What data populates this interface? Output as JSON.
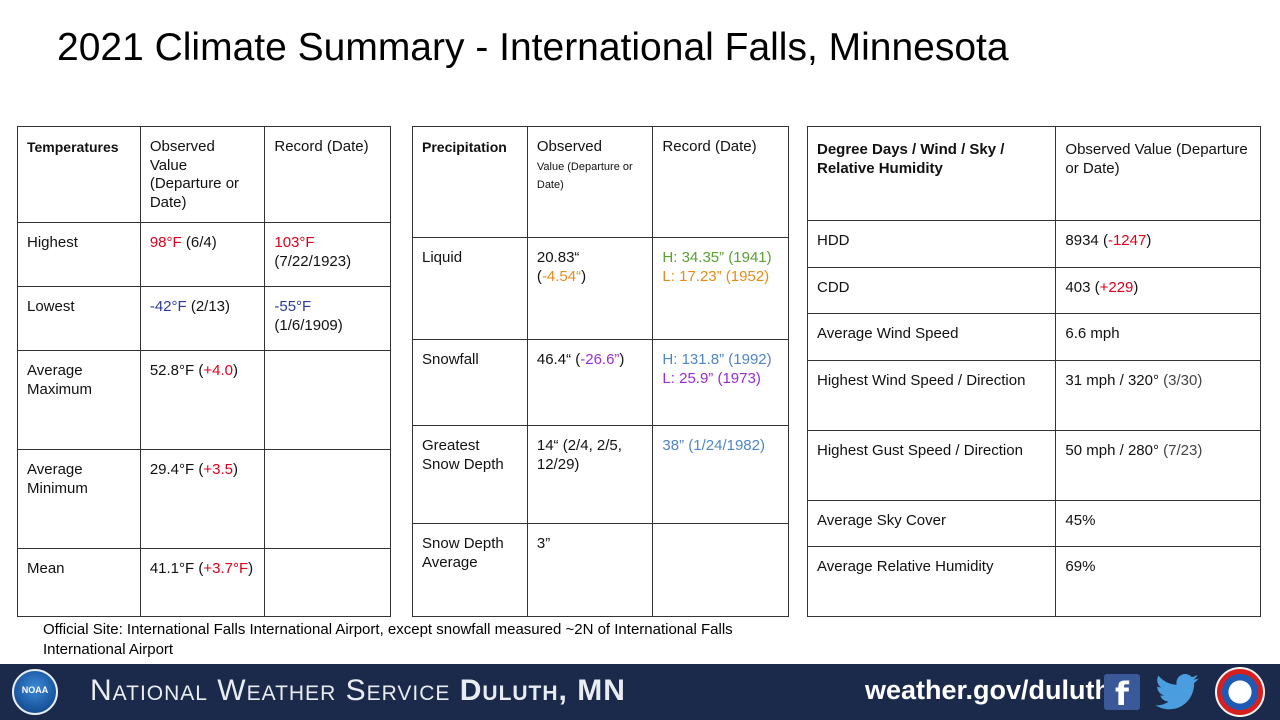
{
  "title": "2021 Climate Summary - International Falls, Minnesota",
  "temperatures": {
    "headers": [
      "Temperatures",
      "Observed Value (Departure or Date)",
      "Record (Date)"
    ],
    "rows": [
      {
        "label": "Highest",
        "obs_val": "98°F",
        "obs_rest": " (6/4)",
        "rec_val": "103°F",
        "rec_rest": "(7/22/1923)"
      },
      {
        "label": "Lowest",
        "obs_val": "-42°F",
        "obs_rest": " (2/13)",
        "rec_val": "-55°F",
        "rec_rest": "(1/6/1909)"
      },
      {
        "label": "Average Maximum",
        "obs_pre": "52.8°F (",
        "obs_dep": "+4.0",
        "obs_post": ")"
      },
      {
        "label": "Average Minimum",
        "obs_pre": "29.4°F (",
        "obs_dep": "+3.5",
        "obs_post": ")"
      },
      {
        "label": "Mean",
        "obs_pre": "41.1°F (",
        "obs_dep": "+3.7°F",
        "obs_post": ")"
      }
    ]
  },
  "precipitation": {
    "headers": [
      "Precipitation",
      "Observed",
      "Value (Departure or Date)",
      "Record (Date)"
    ],
    "rows": [
      {
        "label": "Liquid",
        "obs_pre": "20.83“",
        "obs_open": "(",
        "obs_dep": "-4.54“",
        "obs_post": ")",
        "rec_h": "H: 34.35” (1941)",
        "rec_l": "L: 17.23” (1952)"
      },
      {
        "label": "Snowfall",
        "obs_pre": "46.4“ (",
        "obs_dep": "-26.6”",
        "obs_post": ")",
        "rec_h": "H: 131.8” (1992)",
        "rec_l": "L: 25.9” (1973)"
      },
      {
        "label": "Greatest Snow Depth",
        "obs": "14“ (2/4, 2/5, 12/29)",
        "rec": "38” (1/24/1982)"
      },
      {
        "label": "Snow Depth Average",
        "obs": "3”"
      }
    ]
  },
  "degree_days": {
    "headers": [
      "Degree Days / Wind / Sky / Relative Humidity",
      "Observed Value (Departure or Date)"
    ],
    "rows": [
      {
        "label": "HDD",
        "pre": "8934 (",
        "dep": "-1247",
        "post": ")"
      },
      {
        "label": "CDD",
        "pre": "403 (",
        "dep": "+229",
        "post": ")"
      },
      {
        "label": "Average Wind Speed",
        "value": "6.6 mph"
      },
      {
        "label": "Highest Wind Speed / Direction",
        "value": "31 mph / 320°",
        "date": " (3/30)"
      },
      {
        "label": "Highest Gust Speed / Direction",
        "value": "50 mph / 280°",
        "date": " (7/23)"
      },
      {
        "label": "Average Sky Cover",
        "value": "45%"
      },
      {
        "label": "Average Relative Humidity",
        "value": "69%"
      }
    ]
  },
  "note": "Official Site: International Falls International Airport, except snowfall measured ~2N of International Falls International Airport",
  "footer": {
    "noaa_label": "NOAA",
    "nws_prefix": "National Weather Service",
    "nws_office": "Duluth, MN",
    "url": "weather.gov/duluth",
    "facebook_glyph": "f"
  },
  "colors": {
    "red": "#e0001b",
    "blue": "#2e3aa0",
    "green": "#5aa033",
    "orange": "#e88a1a",
    "light_blue": "#4f86c6",
    "purple": "#9b2bd6",
    "footer_bg": "#1b2a4a"
  }
}
